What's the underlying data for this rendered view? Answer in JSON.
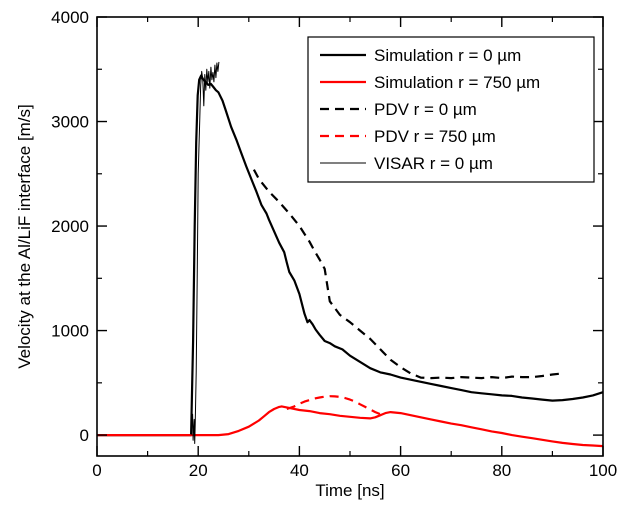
{
  "chart_data": {
    "type": "line",
    "xlabel": "Time [ns]",
    "ylabel": "Velocity at the Al/LiF interface [m/s]",
    "xlim": [
      0,
      100
    ],
    "ylim": [
      -200,
      4000
    ],
    "xticks": [
      0,
      20,
      40,
      60,
      80,
      100
    ],
    "yticks": [
      0,
      1000,
      2000,
      3000,
      4000
    ],
    "legend_position": "top-right",
    "series": [
      {
        "name": "Simulation r = 0  µm",
        "color": "#000000",
        "dash": "solid",
        "width": "thick",
        "x": [
          0,
          18.6,
          19.0,
          19.3,
          19.6,
          19.9,
          20.2,
          20.6,
          21.0,
          21.5,
          22.0,
          22.5,
          23.0,
          23.5,
          24.0,
          24.8,
          25.5,
          26.5,
          27.5,
          28.5,
          29.5,
          30.5,
          31.5,
          32.5,
          33.0,
          33.5,
          34.0,
          35.0,
          36.0,
          37.0,
          37.5,
          38.0,
          39.0,
          40.0,
          41.0,
          41.6,
          42.0,
          42.6,
          43.2,
          44.0,
          45.0,
          46.0,
          47.0,
          48.5,
          50.0,
          52.0,
          54.0,
          56.0,
          58.0,
          60.0,
          62.0,
          64.0,
          66.0,
          68.0,
          70.0,
          72.0,
          74.0,
          76.0,
          78.0,
          80.0,
          82.0,
          84.0,
          86.0,
          88.0,
          90.0,
          92.0,
          94.0,
          96.0,
          98.0,
          100.0
        ],
        "y": [
          0,
          0,
          900,
          2000,
          2800,
          3250,
          3400,
          3440,
          3400,
          3380,
          3350,
          3360,
          3330,
          3300,
          3280,
          3200,
          3100,
          2950,
          2830,
          2700,
          2570,
          2450,
          2330,
          2200,
          2160,
          2120,
          2060,
          1950,
          1840,
          1750,
          1650,
          1560,
          1480,
          1350,
          1160,
          1080,
          1100,
          1060,
          1010,
          960,
          900,
          880,
          850,
          820,
          760,
          700,
          640,
          600,
          580,
          550,
          530,
          510,
          490,
          470,
          450,
          430,
          410,
          400,
          390,
          380,
          375,
          360,
          350,
          340,
          330,
          335,
          345,
          360,
          380,
          410
        ]
      },
      {
        "name": "Simulation r = 750  µm",
        "color": "#ff0000",
        "dash": "solid",
        "width": "thick",
        "x": [
          0,
          10,
          20,
          24,
          26,
          28,
          30,
          31,
          32,
          33,
          34,
          35,
          36,
          36.5,
          37,
          38,
          40,
          42,
          44,
          46,
          48,
          50,
          52,
          54,
          55,
          56,
          57,
          58,
          60,
          62,
          64,
          66,
          68,
          70,
          72,
          74,
          76,
          78,
          80,
          82,
          84,
          86,
          88,
          90,
          92,
          94,
          96,
          98,
          100
        ],
        "y": [
          0,
          0,
          0,
          0,
          10,
          40,
          80,
          110,
          140,
          180,
          220,
          250,
          270,
          275,
          270,
          260,
          240,
          230,
          210,
          200,
          185,
          175,
          165,
          160,
          170,
          190,
          210,
          220,
          210,
          190,
          170,
          150,
          130,
          110,
          95,
          75,
          55,
          35,
          20,
          0,
          -15,
          -30,
          -45,
          -60,
          -75,
          -85,
          -95,
          -100,
          -105
        ]
      },
      {
        "name": "PDV r = 0  µm",
        "color": "#000000",
        "dash": "dashed",
        "width": "thick",
        "x": [
          31,
          32,
          34,
          36,
          38,
          40,
          42,
          43,
          44,
          45,
          46,
          48,
          50,
          52,
          54,
          56,
          58,
          60,
          62,
          64,
          66,
          68,
          70,
          72,
          74,
          76,
          78,
          80,
          82,
          84,
          86,
          88,
          90,
          92
        ],
        "y": [
          2540,
          2450,
          2330,
          2230,
          2120,
          2000,
          1850,
          1760,
          1680,
          1590,
          1280,
          1150,
          1080,
          1000,
          920,
          820,
          720,
          650,
          590,
          550,
          545,
          550,
          545,
          555,
          550,
          545,
          555,
          545,
          560,
          555,
          555,
          565,
          580,
          590
        ]
      },
      {
        "name": "PDV r = 750  µm",
        "color": "#ff0000",
        "dash": "dashed",
        "width": "thick",
        "x": [
          37.5,
          39,
          40,
          41,
          42,
          43,
          44,
          45,
          46,
          47,
          48,
          49,
          50,
          51,
          52,
          53,
          54,
          55,
          56
        ],
        "y": [
          250,
          275,
          300,
          320,
          335,
          350,
          360,
          368,
          372,
          370,
          365,
          355,
          340,
          320,
          295,
          270,
          245,
          220,
          200
        ]
      },
      {
        "name": "VISAR r = 0  µm",
        "color": "#000000",
        "dash": "solid",
        "width": "thin",
        "x": [
          18.6,
          18.9,
          19.0,
          19.2,
          19.3,
          19.4,
          19.6,
          19.8,
          20.0,
          20.3,
          20.5,
          20.7,
          20.9,
          21.1,
          21.3,
          21.5,
          21.7,
          21.9,
          22.1,
          22.3,
          22.5,
          22.7,
          22.9,
          23.1,
          23.3,
          23.5,
          23.7,
          23.9,
          24.1
        ],
        "y": [
          0,
          200,
          -50,
          150,
          -80,
          100,
          600,
          1500,
          2500,
          3000,
          3350,
          3480,
          3400,
          3150,
          3450,
          3300,
          3500,
          3380,
          3480,
          3320,
          3520,
          3400,
          3470,
          3380,
          3540,
          3420,
          3560,
          3480,
          3570
        ]
      }
    ]
  }
}
